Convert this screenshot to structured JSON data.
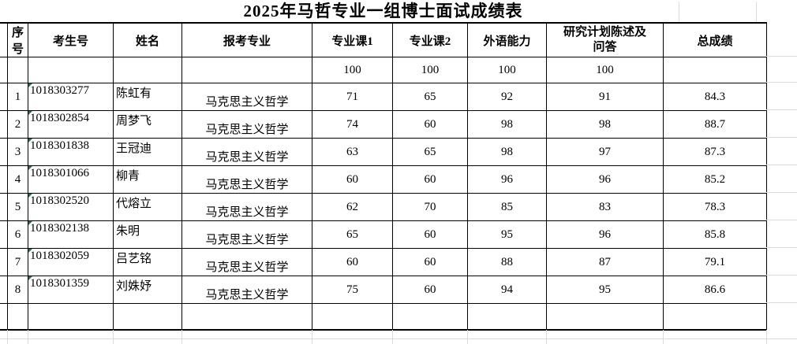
{
  "title": "2025年马哲专业一组博士面试成绩表",
  "table": {
    "columns": [
      "序号",
      "考生号",
      "姓名",
      "报考专业",
      "专业课1",
      "专业课2",
      "外语能力",
      "研究计划陈述及问答",
      "总成绩"
    ],
    "max_values": [
      "",
      "",
      "",
      "",
      "100",
      "100",
      "100",
      "100",
      ""
    ],
    "rows": [
      {
        "no": "1",
        "candidate_id": "1018303277",
        "name": "陈虹有",
        "major": "马克思主义哲学",
        "course1": "71",
        "course2": "65",
        "foreign_language": "92",
        "research_plan": "91",
        "total": "84.3"
      },
      {
        "no": "2",
        "candidate_id": "1018302854",
        "name": "周梦飞",
        "major": "马克思主义哲学",
        "course1": "74",
        "course2": "60",
        "foreign_language": "98",
        "research_plan": "98",
        "total": "88.7"
      },
      {
        "no": "3",
        "candidate_id": "1018301838",
        "name": "王冠迪",
        "major": "马克思主义哲学",
        "course1": "63",
        "course2": "65",
        "foreign_language": "98",
        "research_plan": "97",
        "total": "87.3"
      },
      {
        "no": "4",
        "candidate_id": "1018301066",
        "name": "柳青",
        "major": "马克思主义哲学",
        "course1": "60",
        "course2": "60",
        "foreign_language": "96",
        "research_plan": "96",
        "total": "85.2"
      },
      {
        "no": "5",
        "candidate_id": "1018302520",
        "name": "代熔立",
        "major": "马克思主义哲学",
        "course1": "62",
        "course2": "70",
        "foreign_language": "85",
        "research_plan": "83",
        "total": "78.3"
      },
      {
        "no": "6",
        "candidate_id": "1018302138",
        "name": "朱明",
        "major": "马克思主义哲学",
        "course1": "65",
        "course2": "60",
        "foreign_language": "95",
        "research_plan": "96",
        "total": "85.8"
      },
      {
        "no": "7",
        "candidate_id": "1018302059",
        "name": "吕艺铭",
        "major": "马克思主义哲学",
        "course1": "60",
        "course2": "60",
        "foreign_language": "88",
        "research_plan": "87",
        "total": "79.1"
      },
      {
        "no": "8",
        "candidate_id": "1018301359",
        "name": "刘姝妤",
        "major": "马克思主义哲学",
        "course1": "75",
        "course2": "60",
        "foreign_language": "94",
        "research_plan": "95",
        "total": "86.6"
      }
    ]
  },
  "colors": {
    "border": "#000000",
    "gridline": "#dcdcdc",
    "text_format_indicator": "#217346",
    "background": "#ffffff"
  }
}
